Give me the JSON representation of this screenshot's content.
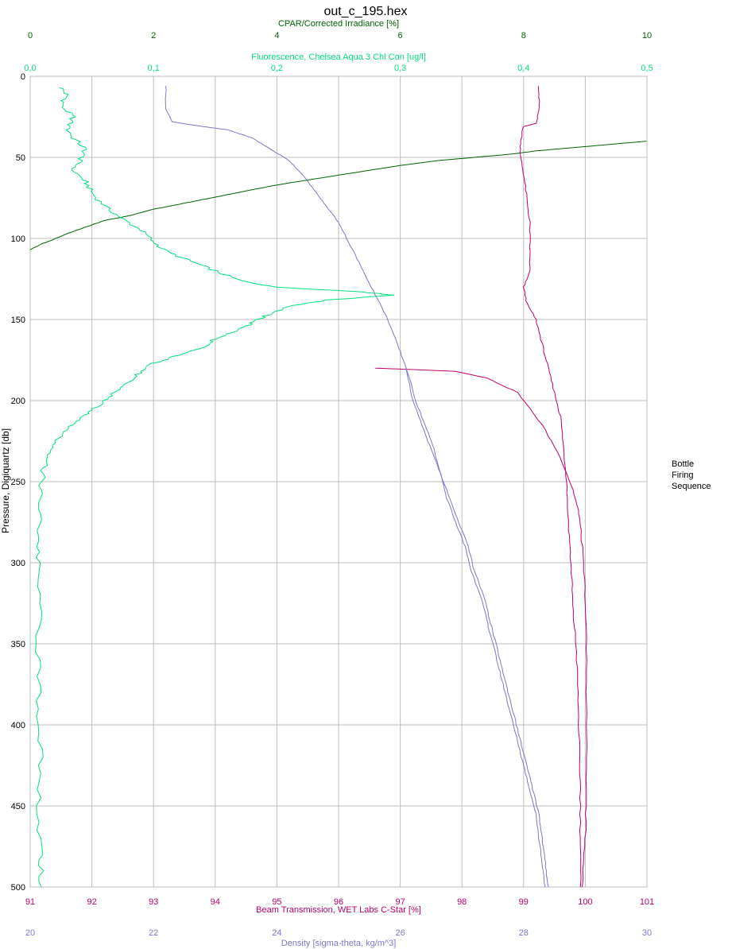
{
  "title": "out_c_195.hex",
  "legend": [
    "Bottle",
    "Firing",
    "Sequence"
  ],
  "colors": {
    "cpar": "#006400",
    "fluorescence": "#00e27a",
    "beam": "#c0006e",
    "density": "#7a7ac8",
    "grid": "#bdbdbd",
    "axis_text": "#000000"
  },
  "chart_data": {
    "type": "line",
    "y_axis": {
      "label": "Pressure, Digiquartz [db]",
      "range": [
        0,
        500
      ],
      "ticks": [
        0,
        50,
        100,
        150,
        200,
        250,
        300,
        350,
        400,
        450,
        500
      ],
      "inverted": true
    },
    "grid": true,
    "legend_position": "right",
    "axes": [
      {
        "id": "cpar",
        "label": "CPAR/Corrected Irradiance [%]",
        "position": "top-outer",
        "range": [
          0,
          10
        ],
        "ticks": [
          "0",
          "2",
          "4",
          "6",
          "8",
          "10"
        ]
      },
      {
        "id": "fluorescence",
        "label": "Fluorescence, Chelsea Aqua 3 Chl Con [ug/l]",
        "position": "top-inner",
        "range": [
          0,
          0.5
        ],
        "ticks": [
          "0,0",
          "0,1",
          "0,2",
          "0,3",
          "0,4",
          "0,5"
        ]
      },
      {
        "id": "beam",
        "label": "Beam Transmission, WET Labs C-Star [%]",
        "position": "bottom-inner",
        "range": [
          91,
          101
        ],
        "ticks": [
          "91",
          "92",
          "93",
          "94",
          "95",
          "96",
          "97",
          "98",
          "99",
          "100",
          "101"
        ]
      },
      {
        "id": "density",
        "label": "Density [sigma-theta, kg/m^3]",
        "position": "bottom-outer",
        "range": [
          20,
          30
        ],
        "ticks": [
          "20",
          "22",
          "24",
          "26",
          "28",
          "30"
        ]
      }
    ],
    "series": [
      {
        "axis": "cpar",
        "points": [
          [
            10,
            40
          ],
          [
            9.4,
            42
          ],
          [
            8.8,
            44
          ],
          [
            8.2,
            46
          ],
          [
            7.8,
            48
          ],
          [
            7.2,
            50
          ],
          [
            6.6,
            52
          ],
          [
            6.0,
            55
          ],
          [
            5.5,
            58
          ],
          [
            5.0,
            61
          ],
          [
            4.5,
            64
          ],
          [
            4.0,
            67
          ],
          [
            3.6,
            70
          ],
          [
            3.2,
            73
          ],
          [
            2.8,
            76
          ],
          [
            2.4,
            79
          ],
          [
            2.0,
            82
          ],
          [
            1.6,
            86
          ],
          [
            1.2,
            89
          ],
          [
            0.9,
            93
          ],
          [
            0.6,
            97
          ],
          [
            0.35,
            101
          ],
          [
            0.15,
            104
          ],
          [
            0,
            107
          ]
        ]
      },
      {
        "axis": "fluorescence",
        "points": [
          [
            0.025,
            7
          ],
          [
            0.03,
            12
          ],
          [
            0.025,
            18
          ],
          [
            0.035,
            25
          ],
          [
            0.03,
            32
          ],
          [
            0.035,
            38
          ],
          [
            0.045,
            45
          ],
          [
            0.04,
            52
          ],
          [
            0.035,
            58
          ],
          [
            0.045,
            65
          ],
          [
            0.05,
            72
          ],
          [
            0.06,
            80
          ],
          [
            0.075,
            88
          ],
          [
            0.09,
            95
          ],
          [
            0.1,
            102
          ],
          [
            0.11,
            108
          ],
          [
            0.13,
            114
          ],
          [
            0.15,
            120
          ],
          [
            0.17,
            126
          ],
          [
            0.2,
            130
          ],
          [
            0.27,
            133
          ],
          [
            0.295,
            135
          ],
          [
            0.24,
            138
          ],
          [
            0.21,
            142
          ],
          [
            0.19,
            148
          ],
          [
            0.18,
            152
          ],
          [
            0.17,
            156
          ],
          [
            0.15,
            162
          ],
          [
            0.14,
            167
          ],
          [
            0.12,
            172
          ],
          [
            0.1,
            177
          ],
          [
            0.09,
            182
          ],
          [
            0.08,
            188
          ],
          [
            0.07,
            194
          ],
          [
            0.06,
            200
          ],
          [
            0.05,
            206
          ],
          [
            0.04,
            212
          ],
          [
            0.03,
            218
          ],
          [
            0.02,
            226
          ],
          [
            0.015,
            235
          ],
          [
            0.01,
            245
          ],
          [
            0.008,
            260
          ],
          [
            0.007,
            280
          ],
          [
            0.006,
            300
          ],
          [
            0.007,
            330
          ],
          [
            0.006,
            360
          ],
          [
            0.007,
            390
          ],
          [
            0.008,
            420
          ],
          [
            0.007,
            450
          ],
          [
            0.008,
            480
          ],
          [
            0.009,
            500
          ]
        ]
      },
      {
        "axis": "beam",
        "points": [
          [
            99.25,
            6
          ],
          [
            99.25,
            20
          ],
          [
            99.2,
            29
          ],
          [
            99.0,
            31
          ],
          [
            98.95,
            40
          ],
          [
            98.95,
            50
          ],
          [
            99.0,
            60
          ],
          [
            99.05,
            75
          ],
          [
            99.1,
            90
          ],
          [
            99.1,
            105
          ],
          [
            99.1,
            120
          ],
          [
            99.0,
            130
          ],
          [
            99.05,
            140
          ],
          [
            99.2,
            150
          ],
          [
            99.3,
            165
          ],
          [
            99.4,
            180
          ],
          [
            99.5,
            195
          ],
          [
            99.6,
            210
          ],
          [
            99.65,
            230
          ],
          [
            99.7,
            250
          ],
          [
            99.72,
            270
          ],
          [
            99.75,
            290
          ],
          [
            99.78,
            310
          ],
          [
            99.8,
            330
          ],
          [
            99.85,
            350
          ],
          [
            99.88,
            380
          ],
          [
            99.9,
            410
          ],
          [
            99.92,
            440
          ],
          [
            99.92,
            470
          ],
          [
            99.92,
            500
          ]
        ]
      },
      {
        "axis": "beam",
        "points": [
          [
            96.6,
            180
          ],
          [
            97.3,
            181
          ],
          [
            97.9,
            182
          ],
          [
            98.4,
            186
          ],
          [
            98.9,
            195
          ],
          [
            99.3,
            215
          ],
          [
            99.6,
            235
          ],
          [
            99.8,
            255
          ],
          [
            99.9,
            270
          ],
          [
            99.95,
            290
          ],
          [
            100.0,
            320
          ],
          [
            100.02,
            360
          ],
          [
            100.02,
            400
          ],
          [
            100.02,
            440
          ],
          [
            100.0,
            470
          ],
          [
            99.95,
            500
          ]
        ]
      },
      {
        "axis": "density",
        "points": [
          [
            22.2,
            6
          ],
          [
            22.2,
            20
          ],
          [
            22.3,
            28
          ],
          [
            22.8,
            31
          ],
          [
            23.2,
            33
          ],
          [
            23.6,
            38
          ],
          [
            23.9,
            45
          ],
          [
            24.2,
            52
          ],
          [
            24.4,
            60
          ],
          [
            24.6,
            70
          ],
          [
            24.8,
            80
          ],
          [
            25.0,
            90
          ],
          [
            25.2,
            105
          ],
          [
            25.4,
            120
          ],
          [
            25.6,
            135
          ],
          [
            25.8,
            150
          ],
          [
            25.95,
            165
          ],
          [
            26.1,
            180
          ],
          [
            26.25,
            200
          ],
          [
            26.4,
            215
          ],
          [
            26.55,
            230
          ],
          [
            26.65,
            245
          ],
          [
            26.8,
            260
          ],
          [
            26.95,
            275
          ],
          [
            27.1,
            290
          ],
          [
            27.2,
            305
          ],
          [
            27.35,
            320
          ],
          [
            27.45,
            335
          ],
          [
            27.55,
            350
          ],
          [
            27.65,
            365
          ],
          [
            27.75,
            380
          ],
          [
            27.85,
            395
          ],
          [
            27.95,
            410
          ],
          [
            28.05,
            425
          ],
          [
            28.15,
            440
          ],
          [
            28.25,
            455
          ],
          [
            28.3,
            470
          ],
          [
            28.35,
            485
          ],
          [
            28.4,
            500
          ]
        ]
      },
      {
        "axis": "density",
        "points": [
          [
            26.1,
            180
          ],
          [
            26.2,
            200
          ],
          [
            26.35,
            215
          ],
          [
            26.5,
            230
          ],
          [
            26.65,
            245
          ],
          [
            26.75,
            260
          ],
          [
            26.9,
            275
          ],
          [
            27.05,
            290
          ],
          [
            27.15,
            305
          ],
          [
            27.3,
            320
          ],
          [
            27.4,
            335
          ],
          [
            27.5,
            350
          ],
          [
            27.6,
            365
          ],
          [
            27.7,
            380
          ],
          [
            27.8,
            395
          ],
          [
            27.9,
            410
          ],
          [
            28.0,
            425
          ],
          [
            28.1,
            440
          ],
          [
            28.2,
            455
          ],
          [
            28.25,
            470
          ],
          [
            28.3,
            485
          ],
          [
            28.35,
            500
          ]
        ]
      }
    ]
  }
}
